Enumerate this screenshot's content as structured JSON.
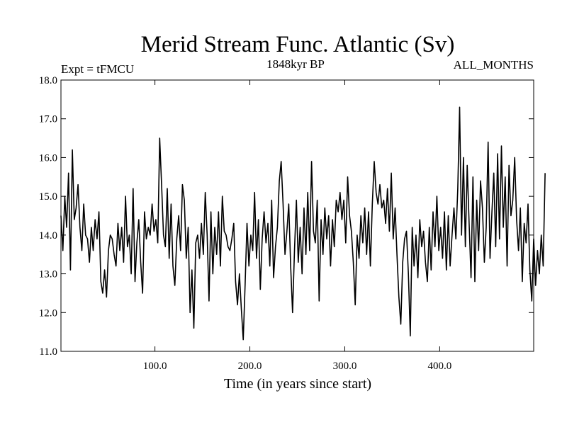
{
  "chart_data": {
    "type": "line",
    "title": "Merid Stream Func. Atlantic (Sv)",
    "subtitle_left": "Expt = tFMCU",
    "subtitle_center": "1848kyr BP",
    "subtitle_right": "ALL_MONTHS",
    "xlabel": "Time (in years since start)",
    "ylabel": "",
    "xlim": [
      1,
      499
    ],
    "ylim": [
      11.0,
      18.0
    ],
    "x_ticks": [
      100,
      200,
      300,
      400
    ],
    "x_tick_labels": [
      "100.0",
      "200.0",
      "300.0",
      "400.0"
    ],
    "y_ticks": [
      11,
      12,
      13,
      14,
      15,
      16,
      17,
      18
    ],
    "y_tick_labels": [
      "11.0",
      "12.0",
      "13.0",
      "14.0",
      "15.0",
      "16.0",
      "17.0",
      "18.0"
    ],
    "series": [
      {
        "name": "Merid Stream Func. Atlantic",
        "x_start": 1,
        "x_step": 2,
        "values": [
          14.5,
          13.6,
          15.0,
          14.2,
          15.6,
          13.1,
          16.2,
          14.4,
          14.7,
          15.3,
          14.2,
          13.6,
          14.8,
          14.0,
          13.9,
          13.3,
          14.2,
          13.6,
          14.4,
          13.9,
          14.6,
          12.8,
          12.5,
          13.1,
          12.4,
          13.6,
          14.0,
          13.9,
          13.5,
          13.2,
          14.3,
          13.6,
          14.2,
          13.3,
          15.0,
          13.7,
          14.0,
          13.0,
          15.2,
          12.8,
          13.8,
          14.4,
          13.3,
          12.5,
          14.6,
          13.9,
          14.2,
          14.0,
          14.8,
          14.1,
          14.4,
          13.8,
          16.5,
          15.3,
          14.0,
          13.7,
          15.2,
          13.4,
          14.8,
          13.2,
          12.7,
          13.9,
          14.5,
          13.6,
          15.3,
          14.9,
          13.4,
          14.2,
          12.0,
          13.1,
          11.6,
          13.8,
          14.0,
          13.4,
          14.3,
          13.5,
          15.1,
          14.0,
          12.3,
          14.6,
          13.0,
          14.2,
          13.5,
          14.6,
          13.2,
          15.0,
          14.1,
          14.0,
          13.7,
          13.6,
          13.9,
          14.3,
          12.8,
          12.2,
          13.0,
          12.1,
          11.3,
          12.7,
          14.3,
          13.2,
          14.0,
          13.6,
          15.1,
          13.4,
          14.4,
          12.6,
          13.9,
          14.6,
          13.8,
          14.3,
          13.2,
          14.9,
          12.9,
          13.7,
          14.2,
          15.4,
          15.9,
          14.8,
          13.5,
          14.1,
          14.8,
          13.2,
          12.0,
          13.6,
          14.9,
          13.3,
          14.2,
          13.0,
          14.7,
          13.5,
          15.1,
          13.6,
          15.9,
          14.1,
          13.8,
          14.9,
          12.3,
          14.4,
          13.5,
          14.7,
          13.9,
          14.5,
          13.2,
          14.4,
          13.7,
          14.9,
          14.6,
          15.1,
          14.4,
          14.9,
          13.8,
          15.5,
          14.5,
          14.1,
          13.3,
          12.2,
          14.0,
          13.4,
          14.5,
          13.8,
          14.7,
          13.5,
          14.6,
          13.2,
          14.8,
          15.9,
          15.1,
          14.8,
          15.3,
          14.7,
          14.9,
          14.3,
          15.2,
          14.1,
          15.6,
          13.9,
          14.7,
          13.5,
          12.4,
          11.7,
          13.3,
          13.9,
          14.1,
          13.0,
          11.4,
          14.2,
          13.2,
          14.0,
          12.9,
          14.4,
          13.7,
          14.1,
          13.3,
          12.8,
          14.2,
          13.1,
          14.6,
          13.7,
          15.0,
          13.6,
          14.2,
          13.4,
          14.6,
          13.1,
          14.5,
          13.2,
          14.0,
          14.7,
          13.9,
          15.2,
          17.3,
          14.0,
          16.0,
          13.7,
          15.8,
          14.3,
          12.9,
          15.5,
          12.8,
          14.9,
          13.6,
          15.4,
          14.7,
          13.3,
          14.2,
          16.4,
          13.4,
          14.6,
          15.6,
          13.7,
          16.1,
          13.9,
          16.3,
          14.2,
          15.5,
          13.2,
          15.8,
          14.5,
          14.9,
          16.0,
          14.4,
          13.6,
          14.7,
          12.8,
          14.3,
          13.8,
          14.8,
          13.1,
          12.3,
          13.9,
          12.7,
          13.6,
          13.0,
          14.0,
          13.2,
          15.6
        ]
      }
    ]
  }
}
